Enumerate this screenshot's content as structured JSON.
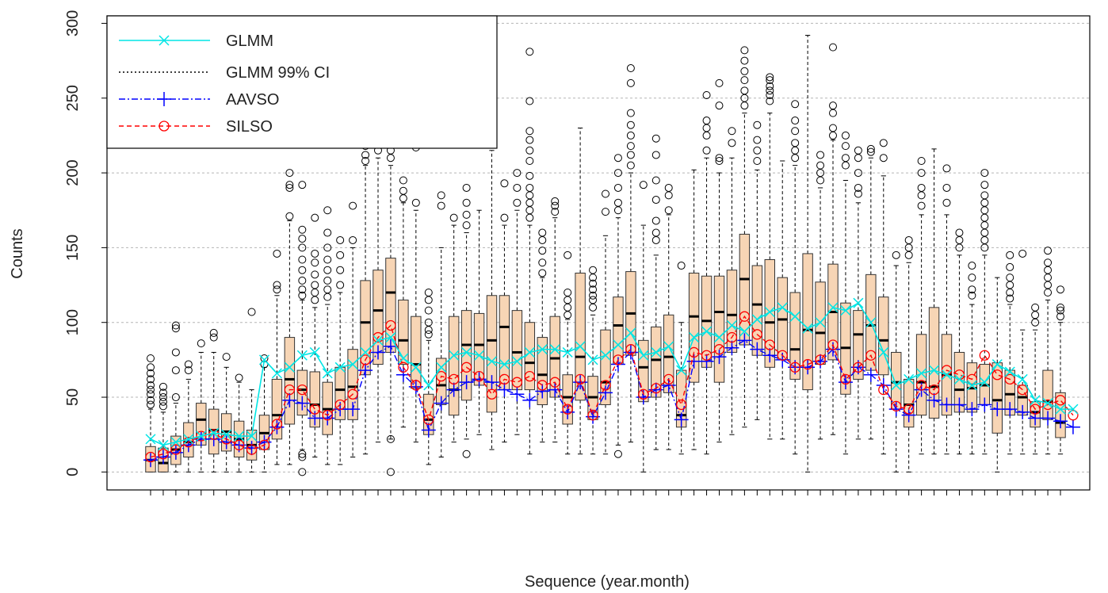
{
  "chart_data": {
    "type": "boxplot",
    "xlabel": "Sequence (year.month)",
    "ylabel": "Counts",
    "ylim": [
      -12,
      305
    ],
    "yticks": [
      0,
      50,
      100,
      150,
      200,
      250,
      300
    ],
    "grid": true,
    "legend_position": "top-left",
    "legend": [
      {
        "label": "GLMM",
        "color": "#00e5e5",
        "style": "solid",
        "marker": "x"
      },
      {
        "label": "GLMM 99% CI",
        "color": "#000000",
        "style": "dotted",
        "marker": "none"
      },
      {
        "label": "AAVSO",
        "color": "#0000ff",
        "style": "dashdot",
        "marker": "plus"
      },
      {
        "label": "SILSO",
        "color": "#ff0000",
        "style": "dashed",
        "marker": "circle"
      }
    ],
    "box_fill": "#f7d5b5",
    "boxes": [
      {
        "q1": 0,
        "median": 8,
        "q3": 17,
        "wlo": 0,
        "whi": 42,
        "outliers": [
          45,
          48,
          52,
          55,
          58,
          62,
          66,
          70,
          76
        ]
      },
      {
        "q1": 0,
        "median": 6,
        "q3": 16,
        "wlo": 0,
        "whi": 40,
        "outliers": [
          44,
          47,
          50,
          53,
          57
        ]
      },
      {
        "q1": 5,
        "median": 15,
        "q3": 24,
        "wlo": 0,
        "whi": 46,
        "outliers": [
          50,
          68,
          80,
          96,
          98
        ]
      },
      {
        "q1": 10,
        "median": 20,
        "q3": 33,
        "wlo": 0,
        "whi": 62,
        "outliers": [
          68,
          72
        ]
      },
      {
        "q1": 18,
        "median": 35,
        "q3": 46,
        "wlo": 0,
        "whi": 80,
        "outliers": [
          86
        ]
      },
      {
        "q1": 12,
        "median": 28,
        "q3": 42,
        "wlo": 0,
        "whi": 80,
        "outliers": [
          90,
          93
        ]
      },
      {
        "q1": 14,
        "median": 27,
        "q3": 39,
        "wlo": 0,
        "whi": 70,
        "outliers": [
          77
        ]
      },
      {
        "q1": 10,
        "median": 22,
        "q3": 34,
        "wlo": 0,
        "whi": 60,
        "outliers": [
          63
        ]
      },
      {
        "q1": 8,
        "median": 18,
        "q3": 28,
        "wlo": 0,
        "whi": 55,
        "outliers": [
          107
        ]
      },
      {
        "q1": 15,
        "median": 26,
        "q3": 38,
        "wlo": 0,
        "whi": 70,
        "outliers": [
          72,
          76
        ]
      },
      {
        "q1": 22,
        "median": 38,
        "q3": 62,
        "wlo": 5,
        "whi": 118,
        "outliers": [
          122,
          125,
          146
        ]
      },
      {
        "q1": 32,
        "median": 62,
        "q3": 90,
        "wlo": 5,
        "whi": 168,
        "outliers": [
          171,
          190,
          192,
          200
        ]
      },
      {
        "q1": 38,
        "median": 55,
        "q3": 68,
        "wlo": 15,
        "whi": 115,
        "outliers": [
          0,
          10,
          12,
          118,
          122,
          128,
          135,
          142,
          150,
          156,
          162,
          192
        ]
      },
      {
        "q1": 30,
        "median": 45,
        "q3": 67,
        "wlo": 10,
        "whi": 110,
        "outliers": [
          115,
          120,
          125,
          132,
          140,
          146,
          170
        ]
      },
      {
        "q1": 25,
        "median": 42,
        "q3": 60,
        "wlo": 5,
        "whi": 112,
        "outliers": [
          117,
          122,
          128,
          135,
          142,
          150,
          160,
          175
        ]
      },
      {
        "q1": 35,
        "median": 55,
        "q3": 70,
        "wlo": 5,
        "whi": 120,
        "outliers": [
          125,
          135,
          145,
          155
        ]
      },
      {
        "q1": 35,
        "median": 57,
        "q3": 82,
        "wlo": 10,
        "whi": 150,
        "outliers": [
          155,
          178
        ]
      },
      {
        "q1": 65,
        "median": 100,
        "q3": 128,
        "wlo": 12,
        "whi": 205,
        "outliers": [
          208,
          212,
          218,
          225,
          232,
          235
        ]
      },
      {
        "q1": 72,
        "median": 108,
        "q3": 135,
        "wlo": 20,
        "whi": 210,
        "outliers": [
          215,
          222,
          232,
          245,
          255,
          260
        ]
      },
      {
        "q1": 80,
        "median": 120,
        "q3": 143,
        "wlo": 22,
        "whi": 205,
        "outliers": [
          0,
          22,
          210,
          215,
          222,
          230,
          251
        ]
      },
      {
        "q1": 72,
        "median": 88,
        "q3": 115,
        "wlo": 30,
        "whi": 180,
        "outliers": [
          183,
          188,
          195
        ]
      },
      {
        "q1": 56,
        "median": 72,
        "q3": 104,
        "wlo": 20,
        "whi": 175,
        "outliers": [
          180,
          217
        ]
      },
      {
        "q1": 25,
        "median": 35,
        "q3": 52,
        "wlo": 5,
        "whi": 88,
        "outliers": [
          92,
          95,
          100,
          108,
          115,
          120
        ]
      },
      {
        "q1": 45,
        "median": 58,
        "q3": 76,
        "wlo": 10,
        "whi": 150,
        "outliers": [
          178,
          185
        ]
      },
      {
        "q1": 38,
        "median": 55,
        "q3": 104,
        "wlo": 20,
        "whi": 165,
        "outliers": [
          170
        ]
      },
      {
        "q1": 48,
        "median": 85,
        "q3": 108,
        "wlo": 22,
        "whi": 160,
        "outliers": [
          12,
          165,
          172,
          180,
          190
        ]
      },
      {
        "q1": 58,
        "median": 85,
        "q3": 106,
        "wlo": 25,
        "whi": 175,
        "outliers": []
      },
      {
        "q1": 40,
        "median": 88,
        "q3": 118,
        "wlo": 15,
        "whi": 215,
        "outliers": []
      },
      {
        "q1": 55,
        "median": 97,
        "q3": 118,
        "wlo": 20,
        "whi": 165,
        "outliers": [
          170,
          193
        ]
      },
      {
        "q1": 55,
        "median": 80,
        "q3": 108,
        "wlo": 25,
        "whi": 175,
        "outliers": [
          180,
          190,
          200
        ]
      },
      {
        "q1": 55,
        "median": 73,
        "q3": 100,
        "wlo": 12,
        "whi": 165,
        "outliers": [
          170,
          175,
          180,
          185,
          190,
          198,
          208,
          215,
          222,
          228,
          248,
          281
        ]
      },
      {
        "q1": 45,
        "median": 65,
        "q3": 90,
        "wlo": 20,
        "whi": 130,
        "outliers": [
          133,
          140,
          148,
          155,
          160
        ]
      },
      {
        "q1": 50,
        "median": 76,
        "q3": 104,
        "wlo": 20,
        "whi": 170,
        "outliers": [
          174,
          178,
          181
        ]
      },
      {
        "q1": 32,
        "median": 50,
        "q3": 65,
        "wlo": 12,
        "whi": 102,
        "outliers": [
          105,
          110,
          115,
          120,
          145
        ]
      },
      {
        "q1": 48,
        "median": 77,
        "q3": 133,
        "wlo": 12,
        "whi": 230,
        "outliers": []
      },
      {
        "q1": 35,
        "median": 50,
        "q3": 64,
        "wlo": 12,
        "whi": 105,
        "outliers": [
          110,
          115,
          118,
          122,
          126,
          130,
          135
        ]
      },
      {
        "q1": 45,
        "median": 60,
        "q3": 95,
        "wlo": 12,
        "whi": 158,
        "outliers": [
          174,
          186
        ]
      },
      {
        "q1": 72,
        "median": 98,
        "q3": 117,
        "wlo": 18,
        "whi": 170,
        "outliers": [
          12,
          175,
          180,
          190,
          200,
          210
        ]
      },
      {
        "q1": 78,
        "median": 106,
        "q3": 134,
        "wlo": 20,
        "whi": 200,
        "outliers": [
          205,
          212,
          218,
          225,
          232,
          240,
          260,
          270
        ]
      },
      {
        "q1": 47,
        "median": 70,
        "q3": 88,
        "wlo": 0,
        "whi": 165,
        "outliers": [
          192
        ]
      },
      {
        "q1": 50,
        "median": 75,
        "q3": 97,
        "wlo": 15,
        "whi": 145,
        "outliers": [
          155,
          160,
          168,
          182,
          195,
          212,
          223
        ]
      },
      {
        "q1": 53,
        "median": 77,
        "q3": 105,
        "wlo": 15,
        "whi": 172,
        "outliers": [
          175,
          185,
          190
        ]
      },
      {
        "q1": 30,
        "median": 38,
        "q3": 68,
        "wlo": 12,
        "whi": 100,
        "outliers": [
          138
        ]
      },
      {
        "q1": 60,
        "median": 104,
        "q3": 133,
        "wlo": 15,
        "whi": 202,
        "outliers": []
      },
      {
        "q1": 70,
        "median": 101,
        "q3": 131,
        "wlo": 12,
        "whi": 210,
        "outliers": [
          215,
          225,
          230,
          235,
          252
        ]
      },
      {
        "q1": 60,
        "median": 107,
        "q3": 131,
        "wlo": 20,
        "whi": 200,
        "outliers": [
          208,
          210,
          245,
          260
        ]
      },
      {
        "q1": 80,
        "median": 105,
        "q3": 135,
        "wlo": 25,
        "whi": 210,
        "outliers": [
          220,
          228
        ]
      },
      {
        "q1": 85,
        "median": 129,
        "q3": 159,
        "wlo": 30,
        "whi": 240,
        "outliers": [
          245,
          250,
          255,
          262,
          268,
          275,
          282
        ]
      },
      {
        "q1": 78,
        "median": 112,
        "q3": 138,
        "wlo": 35,
        "whi": 202,
        "outliers": [
          208,
          215,
          222,
          232
        ]
      },
      {
        "q1": 70,
        "median": 100,
        "q3": 142,
        "wlo": 22,
        "whi": 240,
        "outliers": [
          248,
          252,
          255,
          258,
          262,
          264
        ]
      },
      {
        "q1": 75,
        "median": 102,
        "q3": 130,
        "wlo": 22,
        "whi": 208,
        "outliers": []
      },
      {
        "q1": 62,
        "median": 82,
        "q3": 120,
        "wlo": 12,
        "whi": 205,
        "outliers": [
          210,
          215,
          220,
          228,
          235,
          246
        ]
      },
      {
        "q1": 55,
        "median": 95,
        "q3": 146,
        "wlo": 0,
        "whi": 292,
        "outliers": []
      },
      {
        "q1": 72,
        "median": 93,
        "q3": 127,
        "wlo": 22,
        "whi": 190,
        "outliers": [
          195,
          200,
          205,
          212
        ]
      },
      {
        "q1": 75,
        "median": 107,
        "q3": 139,
        "wlo": 25,
        "whi": 222,
        "outliers": [
          225,
          230,
          240,
          245,
          284
        ]
      },
      {
        "q1": 52,
        "median": 83,
        "q3": 113,
        "wlo": 12,
        "whi": 195,
        "outliers": [
          205,
          210,
          218,
          225
        ]
      },
      {
        "q1": 62,
        "median": 92,
        "q3": 108,
        "wlo": 22,
        "whi": 180,
        "outliers": [
          186,
          190,
          200,
          210,
          215
        ]
      },
      {
        "q1": 68,
        "median": 98,
        "q3": 132,
        "wlo": 22,
        "whi": 210,
        "outliers": [
          214,
          216
        ]
      },
      {
        "q1": 65,
        "median": 88,
        "q3": 117,
        "wlo": 12,
        "whi": 198,
        "outliers": [
          210,
          220
        ]
      },
      {
        "q1": 42,
        "median": 60,
        "q3": 80,
        "wlo": 0,
        "whi": 138,
        "outliers": [
          145
        ]
      },
      {
        "q1": 30,
        "median": 45,
        "q3": 62,
        "wlo": 0,
        "whi": 140,
        "outliers": [
          145,
          150,
          155
        ]
      },
      {
        "q1": 38,
        "median": 60,
        "q3": 92,
        "wlo": 12,
        "whi": 172,
        "outliers": [
          178,
          185,
          190,
          200,
          208
        ]
      },
      {
        "q1": 36,
        "median": 57,
        "q3": 110,
        "wlo": 12,
        "whi": 216,
        "outliers": []
      },
      {
        "q1": 38,
        "median": 65,
        "q3": 92,
        "wlo": 12,
        "whi": 172,
        "outliers": [
          180,
          190,
          203
        ]
      },
      {
        "q1": 40,
        "median": 55,
        "q3": 80,
        "wlo": 12,
        "whi": 145,
        "outliers": [
          150,
          155,
          160
        ]
      },
      {
        "q1": 40,
        "median": 56,
        "q3": 73,
        "wlo": 12,
        "whi": 112,
        "outliers": [
          118,
          122,
          130,
          138
        ]
      },
      {
        "q1": 45,
        "median": 58,
        "q3": 72,
        "wlo": 12,
        "whi": 145,
        "outliers": [
          150,
          155,
          160,
          165,
          170,
          175,
          180,
          185,
          192,
          200
        ]
      },
      {
        "q1": 26,
        "median": 48,
        "q3": 73,
        "wlo": 0,
        "whi": 130,
        "outliers": []
      },
      {
        "q1": 38,
        "median": 52,
        "q3": 68,
        "wlo": 12,
        "whi": 112,
        "outliers": [
          116,
          120,
          125,
          130,
          137,
          145
        ]
      },
      {
        "q1": 38,
        "median": 50,
        "q3": 58,
        "wlo": 12,
        "whi": 95,
        "outliers": [
          146
        ]
      },
      {
        "q1": 30,
        "median": 40,
        "q3": 47,
        "wlo": 12,
        "whi": 95,
        "outliers": [
          100,
          105,
          110
        ]
      },
      {
        "q1": 35,
        "median": 47,
        "q3": 68,
        "wlo": 12,
        "whi": 115,
        "outliers": [
          120,
          125,
          130,
          135,
          140,
          148
        ]
      },
      {
        "q1": 23,
        "median": 33,
        "q3": 53,
        "wlo": 12,
        "whi": 100,
        "outliers": [
          104,
          108,
          110,
          122
        ]
      }
    ],
    "series": [
      {
        "name": "GLMM",
        "color": "#00e5e5",
        "values": [
          22,
          18,
          20,
          22,
          24,
          26,
          25,
          24,
          24,
          75,
          66,
          70,
          78,
          80,
          66,
          70,
          72,
          80,
          88,
          90,
          76,
          70,
          58,
          70,
          78,
          80,
          78,
          74,
          72,
          74,
          80,
          82,
          82,
          80,
          84,
          75,
          78,
          85,
          93,
          78,
          80,
          84,
          68,
          90,
          94,
          90,
          98,
          94,
          102,
          107,
          110,
          104,
          96,
          100,
          110,
          108,
          113,
          100,
          80,
          58,
          62,
          66,
          68,
          65,
          62,
          58,
          60,
          72,
          67,
          62,
          48,
          46,
          42,
          42
        ]
      },
      {
        "name": "AAVSO",
        "color": "#0000ff",
        "values": [
          8,
          10,
          13,
          18,
          22,
          22,
          20,
          18,
          16,
          20,
          30,
          48,
          46,
          36,
          36,
          42,
          42,
          68,
          80,
          84,
          65,
          57,
          28,
          46,
          55,
          60,
          62,
          60,
          55,
          52,
          48,
          54,
          55,
          40,
          60,
          37,
          53,
          72,
          80,
          50,
          55,
          58,
          35,
          74,
          74,
          77,
          83,
          88,
          82,
          78,
          75,
          70,
          70,
          74,
          82,
          60,
          70,
          65,
          58,
          42,
          38,
          55,
          48,
          45,
          45,
          42,
          45,
          42,
          42,
          40,
          36,
          36,
          34,
          30
        ]
      },
      {
        "name": "SILSO",
        "color": "#ff0000",
        "values": [
          10,
          12,
          15,
          20,
          24,
          25,
          22,
          18,
          15,
          18,
          32,
          55,
          55,
          42,
          38,
          45,
          52,
          75,
          90,
          98,
          70,
          58,
          35,
          64,
          62,
          70,
          64,
          52,
          62,
          60,
          64,
          58,
          60,
          42,
          62,
          38,
          58,
          75,
          82,
          52,
          56,
          62,
          45,
          80,
          78,
          82,
          90,
          104,
          92,
          85,
          78,
          70,
          72,
          75,
          85,
          62,
          70,
          78,
          55,
          44,
          42,
          58,
          55,
          68,
          65,
          62,
          78,
          65,
          62,
          55,
          42,
          45,
          48,
          38
        ]
      }
    ],
    "ci": {
      "name": "GLMM 99% CI",
      "color": "#000000"
    }
  }
}
